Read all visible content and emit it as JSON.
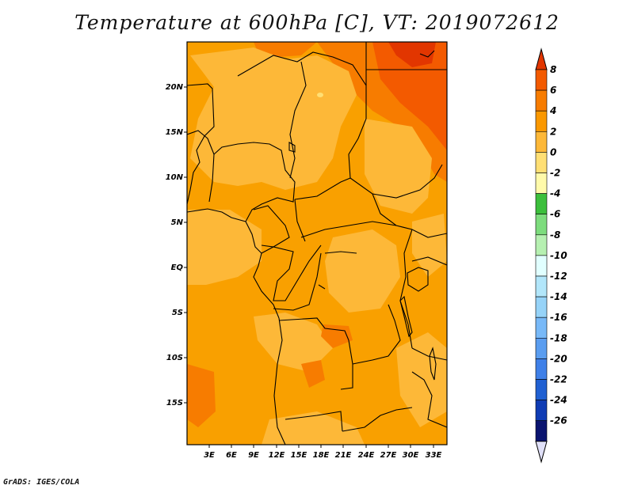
{
  "title": "Temperature at 600hPa [C], VT: 2019072612",
  "credit": "GrADS: IGES/COLA",
  "map": {
    "variable": "Temperature",
    "level": "600hPa",
    "units": "C",
    "valid_time": "2019072612",
    "lat_ticks": [
      "20N",
      "15N",
      "10N",
      "5N",
      "EQ",
      "5S",
      "10S",
      "15S"
    ],
    "lon_ticks": [
      "3E",
      "6E",
      "9E",
      "12E",
      "15E",
      "18E",
      "21E",
      "24E",
      "27E",
      "30E",
      "33E"
    ]
  },
  "colorbar": {
    "labels": [
      "8",
      "6",
      "4",
      "2",
      "0",
      "-2",
      "-4",
      "-6",
      "-8",
      "-10",
      "-12",
      "-14",
      "-16",
      "-18",
      "-20",
      "-22",
      "-24",
      "-26"
    ],
    "colors": [
      "#e23600",
      "#f35a00",
      "#f77c00",
      "#fa9800",
      "#fdb838",
      "#ffdf74",
      "#fffaaa",
      "#3cbf3c",
      "#7ddc7d",
      "#b6f0b1",
      "#e1ffff",
      "#b2e6fa",
      "#96d3f8",
      "#78b9f8",
      "#5a9df0",
      "#3f80e8",
      "#2060d2",
      "#0f3cb4",
      "#0a1470",
      "#e0e0f8"
    ]
  }
}
